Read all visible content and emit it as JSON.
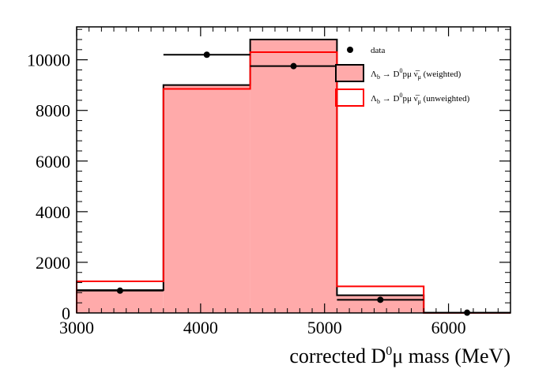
{
  "chart_data": {
    "type": "histogram",
    "xlabel": "corrected D⁰μ mass (MeV)",
    "xlim": [
      3000,
      6500
    ],
    "ylim": [
      0,
      11300
    ],
    "x_ticks": [
      3000,
      4000,
      5000,
      6000
    ],
    "x_tick_labels": [
      "3000",
      "4000",
      "5000",
      "6000"
    ],
    "y_ticks": [
      0,
      2000,
      4000,
      6000,
      8000,
      10000
    ],
    "y_tick_labels": [
      "0",
      "2000",
      "4000",
      "6000",
      "8000",
      "10000"
    ],
    "bin_edges": [
      3000,
      3700,
      4400,
      5100,
      5800,
      6500
    ],
    "grid": false,
    "legend_position": "top-right",
    "colors": {
      "weighted_fill": "#ffaaaa",
      "weighted_line": "#000000",
      "unweighted_line": "#ff0000",
      "data_marker": "#000000"
    },
    "series": [
      {
        "name": "weighted",
        "legend_label": "Λ_b → D⁰pμ ν̅_μ (weighted)",
        "kind": "filled-histogram",
        "values": [
          900,
          9000,
          10800,
          700,
          0
        ]
      },
      {
        "name": "unweighted",
        "legend_label": "Λ_b → D⁰pμ ν̅_μ (unweighted)",
        "kind": "line-histogram",
        "values": [
          1250,
          8850,
          10300,
          1050,
          0
        ]
      },
      {
        "name": "data",
        "legend_label": "data",
        "kind": "points",
        "x": [
          3350,
          4050,
          4750,
          5450,
          6150
        ],
        "y": [
          880,
          10200,
          9750,
          520,
          10
        ],
        "xerr_half_width": 350
      }
    ]
  }
}
